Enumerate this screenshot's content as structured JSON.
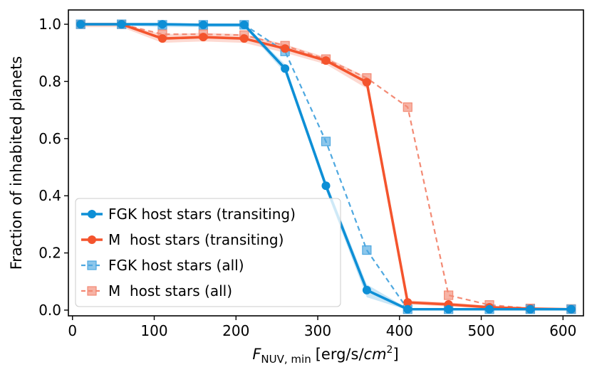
{
  "chart_data": {
    "type": "line",
    "x": [
      10,
      60,
      110,
      160,
      210,
      260,
      310,
      360,
      410,
      460,
      510,
      560,
      610
    ],
    "xlim": [
      -5,
      625
    ],
    "ylim": [
      -0.02,
      1.05
    ],
    "xticks": [
      0,
      100,
      200,
      300,
      400,
      500,
      600
    ],
    "yticks": [
      0.0,
      0.2,
      0.4,
      0.6,
      0.8,
      1.0
    ],
    "xtick_labels": [
      "0",
      "100",
      "200",
      "300",
      "400",
      "500",
      "600"
    ],
    "ytick_labels": [
      "0.0",
      "0.2",
      "0.4",
      "0.6",
      "0.8",
      "1.0"
    ],
    "xlabel_main": "F",
    "xlabel_sub": "NUV, min",
    "xlabel_units_pre": "[erg/s/",
    "xlabel_units_cm": "cm",
    "xlabel_units_exp": "2",
    "xlabel_units_post": "]",
    "ylabel": "Fraction of inhabited planets",
    "legend_position": "lower-left",
    "grid": false,
    "series": [
      {
        "name": "FGK host stars (transiting)",
        "color": "#0d8fd6",
        "style": "solid",
        "marker": "circle",
        "values": [
          1.0,
          1.0,
          1.0,
          0.998,
          0.998,
          0.845,
          0.435,
          0.07,
          0.003,
          0.003,
          0.003,
          0.003,
          0.003
        ],
        "band_low": [
          0.995,
          0.995,
          0.99,
          0.99,
          0.99,
          0.83,
          0.42,
          0.045,
          0.0,
          0.0,
          0.0,
          0.0,
          0.0
        ],
        "band_high": [
          1.0,
          1.0,
          1.0,
          1.0,
          1.0,
          0.86,
          0.45,
          0.09,
          0.006,
          0.006,
          0.006,
          0.006,
          0.006
        ]
      },
      {
        "name": "M  host stars (transiting)",
        "color": "#f4542d",
        "style": "solid",
        "marker": "circle",
        "values": [
          1.0,
          1.0,
          0.95,
          0.955,
          0.95,
          0.915,
          0.873,
          0.797,
          0.027,
          0.02,
          0.01,
          0.005,
          0.003
        ],
        "band_low": [
          0.99,
          0.99,
          0.935,
          0.94,
          0.935,
          0.9,
          0.86,
          0.775,
          0.02,
          0.013,
          0.005,
          0.002,
          0.0
        ],
        "band_high": [
          1.0,
          1.0,
          0.965,
          0.97,
          0.965,
          0.93,
          0.885,
          0.815,
          0.034,
          0.027,
          0.015,
          0.008,
          0.006
        ]
      },
      {
        "name": "FGK host stars (all)",
        "color": "#4ea8e0",
        "style": "dashed",
        "marker": "square",
        "values": [
          1.0,
          1.0,
          0.998,
          0.998,
          0.998,
          0.905,
          0.59,
          0.21,
          0.003,
          0.003,
          0.003,
          0.003,
          0.003
        ]
      },
      {
        "name": "M  host stars (all)",
        "color": "#f38a74",
        "style": "dashed",
        "marker": "square",
        "values": [
          1.0,
          1.0,
          0.965,
          0.965,
          0.962,
          0.925,
          0.878,
          0.812,
          0.71,
          0.052,
          0.018,
          0.006,
          0.004
        ]
      }
    ]
  }
}
